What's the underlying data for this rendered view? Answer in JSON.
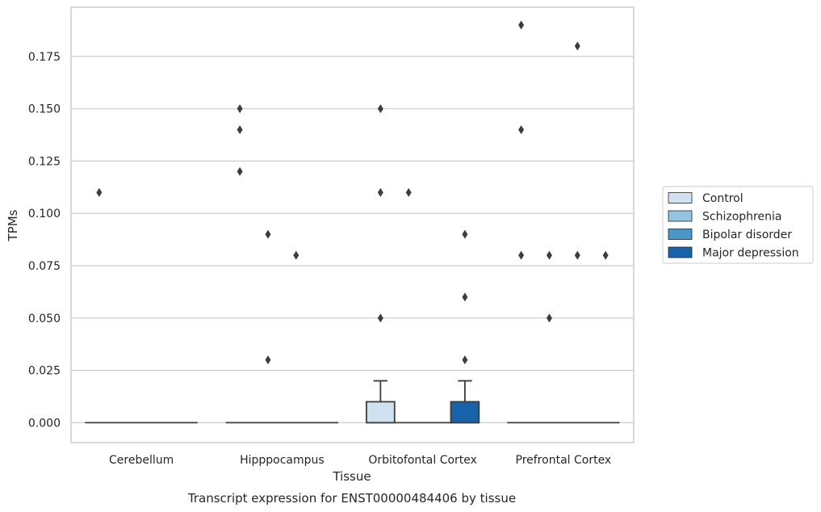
{
  "chart_data": {
    "type": "box",
    "caption": "Transcript expression for ENST00000484406 by tissue",
    "xlabel": "Tissue",
    "ylabel": "TPMs",
    "ylim": [
      -0.0095,
      0.1985
    ],
    "yticks": [
      "0.000",
      "0.025",
      "0.050",
      "0.075",
      "0.100",
      "0.125",
      "0.150",
      "0.175"
    ],
    "grid": "horizontal",
    "legend_position": "right",
    "categories": [
      "Cerebellum",
      "Hipppocampus",
      "Orbitofontal Cortex",
      "Prefrontal Cortex"
    ],
    "series": [
      {
        "name": "Control",
        "color": "#d0e1f2"
      },
      {
        "name": "Schizophrenia",
        "color": "#94c4df"
      },
      {
        "name": "Bipolar disorder",
        "color": "#4a98c9"
      },
      {
        "name": "Major depression",
        "color": "#1764ab"
      }
    ],
    "boxes": [
      {
        "category": 0,
        "series": 0,
        "q1": 0,
        "median": 0,
        "q3": 0,
        "whisker_low": 0,
        "whisker_high": 0,
        "outliers": [
          0.11
        ]
      },
      {
        "category": 0,
        "series": 1,
        "q1": 0,
        "median": 0,
        "q3": 0,
        "whisker_low": 0,
        "whisker_high": 0,
        "outliers": []
      },
      {
        "category": 0,
        "series": 2,
        "q1": 0,
        "median": 0,
        "q3": 0,
        "whisker_low": 0,
        "whisker_high": 0,
        "outliers": []
      },
      {
        "category": 0,
        "series": 3,
        "q1": 0,
        "median": 0,
        "q3": 0,
        "whisker_low": 0,
        "whisker_high": 0,
        "outliers": []
      },
      {
        "category": 1,
        "series": 0,
        "q1": 0,
        "median": 0,
        "q3": 0,
        "whisker_low": 0,
        "whisker_high": 0,
        "outliers": [
          0.15,
          0.14,
          0.12
        ]
      },
      {
        "category": 1,
        "series": 1,
        "q1": 0,
        "median": 0,
        "q3": 0,
        "whisker_low": 0,
        "whisker_high": 0,
        "outliers": [
          0.09,
          0.03
        ]
      },
      {
        "category": 1,
        "series": 2,
        "q1": 0,
        "median": 0,
        "q3": 0,
        "whisker_low": 0,
        "whisker_high": 0,
        "outliers": [
          0.08
        ]
      },
      {
        "category": 1,
        "series": 3,
        "q1": 0,
        "median": 0,
        "q3": 0,
        "whisker_low": 0,
        "whisker_high": 0,
        "outliers": []
      },
      {
        "category": 2,
        "series": 0,
        "q1": 0,
        "median": 0,
        "q3": 0.01,
        "whisker_low": 0,
        "whisker_high": 0.02,
        "outliers": [
          0.15,
          0.11,
          0.05
        ]
      },
      {
        "category": 2,
        "series": 1,
        "q1": 0,
        "median": 0,
        "q3": 0,
        "whisker_low": 0,
        "whisker_high": 0,
        "outliers": [
          0.11
        ]
      },
      {
        "category": 2,
        "series": 2,
        "q1": 0,
        "median": 0,
        "q3": 0,
        "whisker_low": 0,
        "whisker_high": 0,
        "outliers": []
      },
      {
        "category": 2,
        "series": 3,
        "q1": 0,
        "median": 0,
        "q3": 0.01,
        "whisker_low": 0,
        "whisker_high": 0.02,
        "outliers": [
          0.09,
          0.06,
          0.03
        ]
      },
      {
        "category": 3,
        "series": 0,
        "q1": 0,
        "median": 0,
        "q3": 0,
        "whisker_low": 0,
        "whisker_high": 0,
        "outliers": [
          0.19,
          0.14,
          0.08
        ]
      },
      {
        "category": 3,
        "series": 1,
        "q1": 0,
        "median": 0,
        "q3": 0,
        "whisker_low": 0,
        "whisker_high": 0,
        "outliers": [
          0.08,
          0.05
        ]
      },
      {
        "category": 3,
        "series": 2,
        "q1": 0,
        "median": 0,
        "q3": 0,
        "whisker_low": 0,
        "whisker_high": 0,
        "outliers": [
          0.18,
          0.08
        ]
      },
      {
        "category": 3,
        "series": 3,
        "q1": 0,
        "median": 0,
        "q3": 0,
        "whisker_low": 0,
        "whisker_high": 0,
        "outliers": [
          0.08
        ]
      }
    ]
  }
}
